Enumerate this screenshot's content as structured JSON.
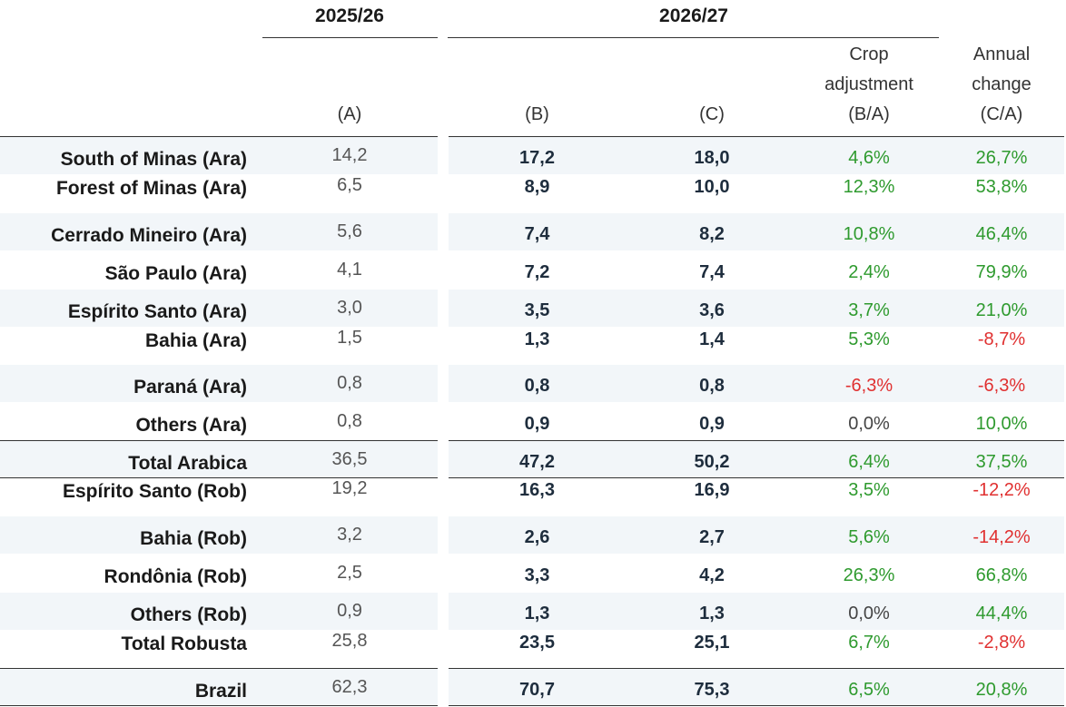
{
  "header": {
    "year_a": "2025/26",
    "year_b": "2026/27",
    "col_a": "(A)",
    "col_b": "(B)",
    "col_c": "(C)",
    "col_d_line1": "Crop",
    "col_d_line2": "adjustment",
    "col_d_line3": "(B/A)",
    "col_e_line1": "Annual",
    "col_e_line2": "change",
    "col_e_line3": "(C/A)"
  },
  "rows": [
    {
      "label": "South of Minas (Ara)",
      "a": "14,2",
      "b": "17,2",
      "c": "18,0",
      "d": "4,6%",
      "e": "26,7%"
    },
    {
      "label": "Forest of Minas (Ara)",
      "a": "6,5",
      "b": "8,9",
      "c": "10,0",
      "d": "12,3%",
      "e": "53,8%"
    },
    {
      "label": "Cerrado Mineiro (Ara)",
      "a": "5,6",
      "b": "7,4",
      "c": "8,2",
      "d": "10,8%",
      "e": "46,4%"
    },
    {
      "label": "São Paulo (Ara)",
      "a": "4,1",
      "b": "7,2",
      "c": "7,4",
      "d": "2,4%",
      "e": "79,9%"
    },
    {
      "label": "Espírito Santo (Ara)",
      "a": "3,0",
      "b": "3,5",
      "c": "3,6",
      "d": "3,7%",
      "e": "21,0%"
    },
    {
      "label": "Bahia (Ara)",
      "a": "1,5",
      "b": "1,3",
      "c": "1,4",
      "d": "5,3%",
      "e": "-8,7%"
    },
    {
      "label": "Paraná (Ara)",
      "a": "0,8",
      "b": "0,8",
      "c": "0,8",
      "d": "-6,3%",
      "e": "-6,3%"
    },
    {
      "label": "Others (Ara)",
      "a": "0,8",
      "b": "0,9",
      "c": "0,9",
      "d": "0,0%",
      "e": "10,0%"
    },
    {
      "label": "Total Arabica",
      "a": "36,5",
      "b": "47,2",
      "c": "50,2",
      "d": "6,4%",
      "e": "37,5%"
    },
    {
      "label": "Espírito Santo (Rob)",
      "a": "19,2",
      "b": "16,3",
      "c": "16,9",
      "d": "3,5%",
      "e": "-12,2%"
    },
    {
      "label": "Bahia (Rob)",
      "a": "3,2",
      "b": "2,6",
      "c": "2,7",
      "d": "5,6%",
      "e": "-14,2%"
    },
    {
      "label": "Rondônia (Rob)",
      "a": "2,5",
      "b": "3,3",
      "c": "4,2",
      "d": "26,3%",
      "e": "66,8%"
    },
    {
      "label": "Others (Rob)",
      "a": "0,9",
      "b": "1,3",
      "c": "1,3",
      "d": "0,0%",
      "e": "44,4%"
    },
    {
      "label": "Total Robusta",
      "a": "25,8",
      "b": "23,5",
      "c": "25,1",
      "d": "6,7%",
      "e": "-2,8%"
    },
    {
      "label": "Brazil",
      "a": "62,3",
      "b": "70,7",
      "c": "75,3",
      "d": "6,5%",
      "e": "20,8%"
    }
  ],
  "colors": {
    "positive": "#2e9a2e",
    "negative": "#e03030",
    "neutral": "#444444",
    "shade": "#f2f6f9"
  }
}
